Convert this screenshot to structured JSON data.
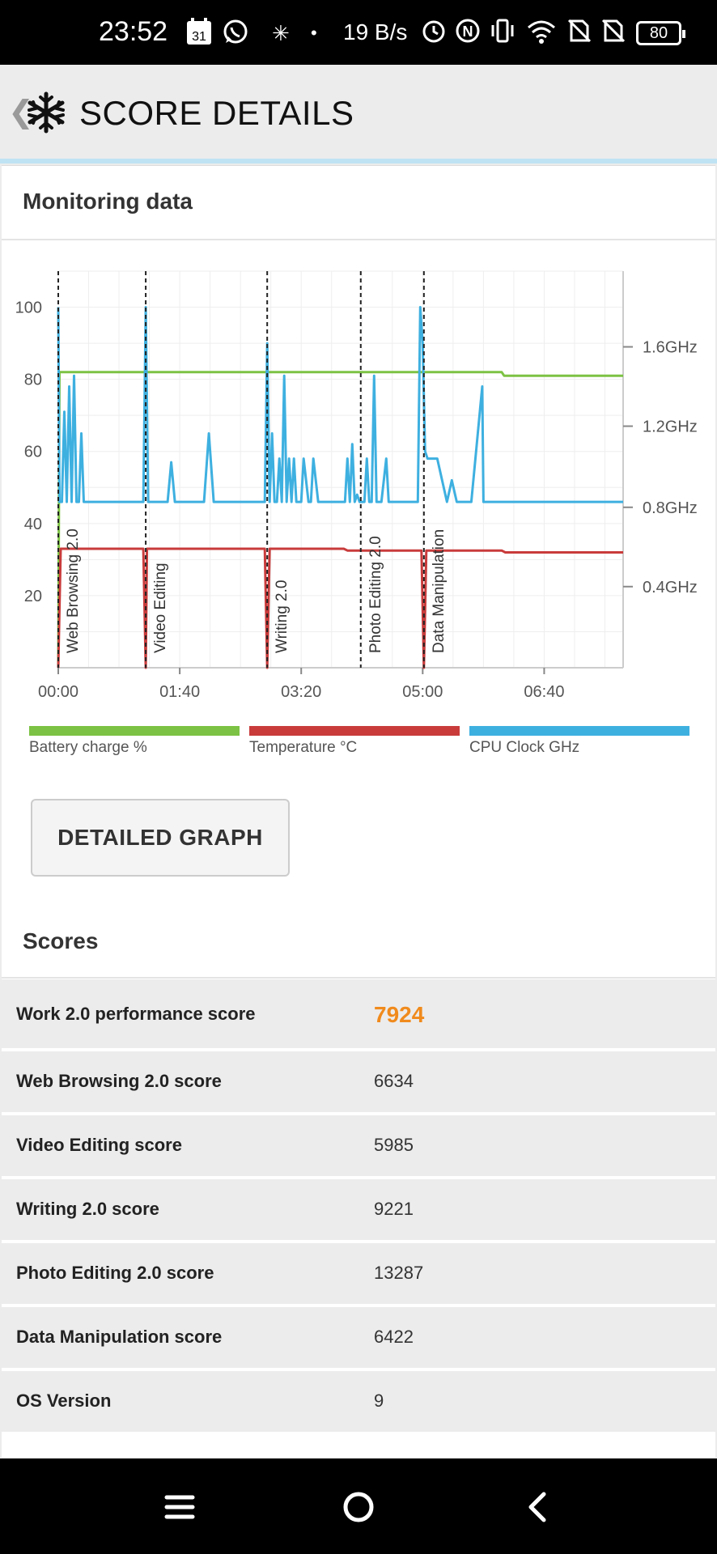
{
  "status_bar": {
    "time": "23:52",
    "calendar_day": "31",
    "network_speed": "19 B/s",
    "battery": "80",
    "icons": [
      "calendar-icon",
      "whatsapp-icon",
      "snowflake-icon",
      "dot-icon",
      "alarm-icon",
      "nfc-icon",
      "vibrate-icon",
      "wifi-icon",
      "no-sim-icon",
      "no-sim-icon"
    ]
  },
  "header": {
    "title": "SCORE DETAILS",
    "logo_icon": "snowflake-logo-icon"
  },
  "monitoring": {
    "title": "Monitoring data",
    "button_label": "DETAILED GRAPH"
  },
  "chart_data": {
    "type": "line",
    "x_ticks": [
      "00:00",
      "01:40",
      "03:20",
      "05:00",
      "06:40"
    ],
    "y_left_ticks": [
      "100",
      "80",
      "60",
      "40",
      "20"
    ],
    "y_left_range": [
      0,
      110
    ],
    "y_right_ticks": [
      "1.6GHz",
      "1.2GHz",
      "0.8GHz",
      "0.4GHz"
    ],
    "grid": true,
    "x_range_seconds": [
      0,
      465
    ],
    "markers": [
      {
        "time": 0,
        "label": "Web Browsing 2.0"
      },
      {
        "time": 72,
        "label": "Video Editing"
      },
      {
        "time": 172,
        "label": "Writing 2.0"
      },
      {
        "time": 249,
        "label": "Photo Editing 2.0"
      },
      {
        "time": 301,
        "label": "Data Manipulation"
      }
    ],
    "series": [
      {
        "name": "Battery charge %",
        "color": "#7cc244",
        "x": [
          0,
          1,
          2,
          365,
          367,
          465
        ],
        "y": [
          0,
          82,
          82,
          82,
          81,
          81
        ]
      },
      {
        "name": "Temperature °C",
        "color": "#c93b3b",
        "x": [
          0,
          2,
          70,
          72,
          73,
          170,
          172,
          174,
          235,
          238,
          299,
          301,
          303,
          365,
          368,
          465
        ],
        "y": [
          0,
          33,
          33,
          0,
          33,
          33,
          0,
          33,
          33,
          32.5,
          32.5,
          0,
          32.5,
          32.5,
          32,
          32
        ]
      },
      {
        "name": "CPU Clock GHz",
        "color": "#3eb0e0",
        "x": [
          0,
          1,
          3,
          5,
          7,
          9,
          11,
          13,
          15,
          17,
          19,
          21,
          23,
          25,
          27,
          28,
          70,
          72,
          74,
          90,
          93,
          96,
          120,
          124,
          128,
          170,
          172,
          174,
          176,
          178,
          180,
          182,
          184,
          186,
          188,
          190,
          192,
          194,
          196,
          198,
          200,
          202,
          206,
          208,
          210,
          214,
          216,
          218,
          236,
          238,
          240,
          242,
          244,
          246,
          248,
          250,
          252,
          254,
          256,
          258,
          260,
          262,
          264,
          266,
          270,
          272,
          274,
          286,
          288,
          290,
          296,
          298,
          300,
          302,
          304,
          306,
          308,
          310,
          312,
          320,
          324,
          328,
          340,
          349,
          350,
          351,
          360,
          465
        ],
        "y": [
          100,
          46,
          46,
          71,
          46,
          78,
          46,
          81,
          46,
          46,
          65,
          46,
          46,
          46,
          46,
          46,
          46,
          100,
          46,
          46,
          57,
          46,
          46,
          65,
          46,
          46,
          90,
          46,
          65,
          46,
          46,
          58,
          46,
          81,
          46,
          58,
          46,
          58,
          46,
          46,
          46,
          58,
          46,
          46,
          58,
          46,
          46,
          46,
          46,
          58,
          46,
          62,
          46,
          48,
          46,
          46,
          46,
          58,
          46,
          46,
          81,
          46,
          46,
          46,
          58,
          46,
          46,
          46,
          46,
          46,
          46,
          100,
          90,
          60,
          58,
          58,
          58,
          58,
          58,
          46,
          52,
          46,
          46,
          78,
          46,
          46,
          46,
          46
        ]
      }
    ]
  },
  "legend": {
    "battery": "Battery charge %",
    "temperature": "Temperature °C",
    "cpu": "CPU Clock GHz"
  },
  "scores": {
    "title": "Scores",
    "rows": [
      {
        "label": "Work 2.0 performance score",
        "value": "7924"
      },
      {
        "label": "Web Browsing 2.0 score",
        "value": "6634"
      },
      {
        "label": "Video Editing score",
        "value": "5985"
      },
      {
        "label": "Writing 2.0 score",
        "value": "9221"
      },
      {
        "label": "Photo Editing 2.0 score",
        "value": "13287"
      },
      {
        "label": "Data Manipulation score",
        "value": "6422"
      },
      {
        "label": "OS Version",
        "value": "9"
      }
    ]
  },
  "nav_bar": {
    "icons": [
      "menu-icon",
      "home-icon",
      "back-icon"
    ]
  }
}
